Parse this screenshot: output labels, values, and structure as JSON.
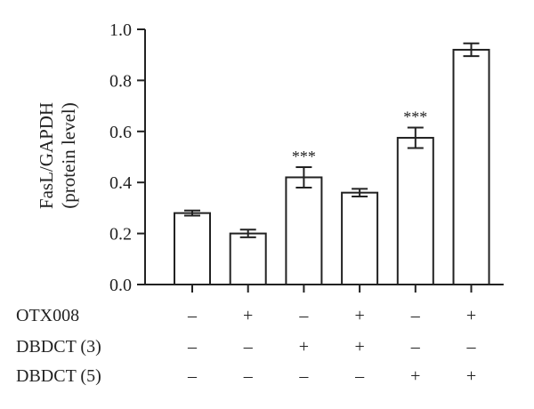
{
  "chart_data": {
    "type": "bar",
    "ylabel": "FasL/GAPDH",
    "ylabel_sub": "(protein level)",
    "ylim": [
      0,
      1.0
    ],
    "yticks": [
      "0.0",
      "0.2",
      "0.4",
      "0.6",
      "0.8",
      "1.0"
    ],
    "bar_fill": "#ffffff",
    "stroke_color": "#222222",
    "groups": 6,
    "values": [
      0.28,
      0.2,
      0.42,
      0.36,
      0.575,
      0.92
    ],
    "errors": [
      0.01,
      0.015,
      0.04,
      0.015,
      0.04,
      0.025
    ],
    "annotations": [
      "",
      "",
      "***",
      "",
      "***",
      ""
    ],
    "conditions": [
      {
        "label": "OTX008",
        "values": [
          "–",
          "+",
          "–",
          "+",
          "–",
          "+"
        ]
      },
      {
        "label": "DBDCT (3)",
        "values": [
          "–",
          "–",
          "+",
          "+",
          "–",
          "–"
        ]
      },
      {
        "label": "DBDCT (5)",
        "values": [
          "–",
          "–",
          "–",
          "–",
          "+",
          "+"
        ]
      }
    ]
  }
}
